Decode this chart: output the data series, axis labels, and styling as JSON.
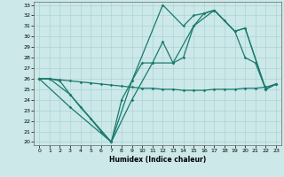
{
  "xlabel": "Humidex (Indice chaleur)",
  "bg_color": "#cce8e8",
  "line_color": "#1a7a6e",
  "grid_color": "#aad4d4",
  "xlim": [
    -0.5,
    23.5
  ],
  "ylim": [
    19.7,
    33.3
  ],
  "xticks": [
    0,
    1,
    2,
    3,
    4,
    5,
    6,
    7,
    8,
    9,
    10,
    11,
    12,
    13,
    14,
    15,
    16,
    17,
    18,
    19,
    20,
    21,
    22,
    23
  ],
  "yticks": [
    20,
    21,
    22,
    23,
    24,
    25,
    26,
    27,
    28,
    29,
    30,
    31,
    32,
    33
  ],
  "line1_x": [
    0,
    1,
    2,
    3,
    4,
    5,
    6,
    7,
    8,
    9,
    10,
    11,
    12,
    13,
    14,
    15,
    16,
    17,
    18,
    19,
    20,
    21,
    22,
    23
  ],
  "line1_y": [
    26,
    26,
    25.8,
    24.5,
    23.3,
    22.2,
    21.0,
    20.0,
    24.0,
    25.8,
    27.5,
    27.5,
    29.5,
    27.5,
    28.0,
    31.0,
    32.2,
    32.5,
    31.5,
    30.5,
    28.0,
    27.5,
    25.0,
    25.5
  ],
  "line2_x": [
    0,
    3,
    7,
    9,
    12,
    14,
    15,
    16,
    17,
    19,
    20,
    22,
    23
  ],
  "line2_y": [
    26,
    23.3,
    20.0,
    25.8,
    33.0,
    31.0,
    32.0,
    32.2,
    32.5,
    30.5,
    30.8,
    25.0,
    25.5
  ],
  "line3_x": [
    0,
    1,
    3,
    7,
    9,
    11,
    13,
    15,
    17,
    19,
    20,
    22,
    23
  ],
  "line3_y": [
    26,
    26,
    24.5,
    20.0,
    24.0,
    27.5,
    27.5,
    31.0,
    32.5,
    30.5,
    30.8,
    25.0,
    25.5
  ],
  "line4_x": [
    0,
    1,
    2,
    3,
    4,
    5,
    6,
    7,
    8,
    9,
    10,
    11,
    12,
    13,
    14,
    15,
    16,
    17,
    18,
    19,
    20,
    21,
    22,
    23
  ],
  "line4_y": [
    26.0,
    26.0,
    25.9,
    25.8,
    25.7,
    25.6,
    25.5,
    25.4,
    25.3,
    25.2,
    25.1,
    25.1,
    25.0,
    25.0,
    24.9,
    24.9,
    24.9,
    25.0,
    25.0,
    25.0,
    25.1,
    25.1,
    25.2,
    25.5
  ]
}
